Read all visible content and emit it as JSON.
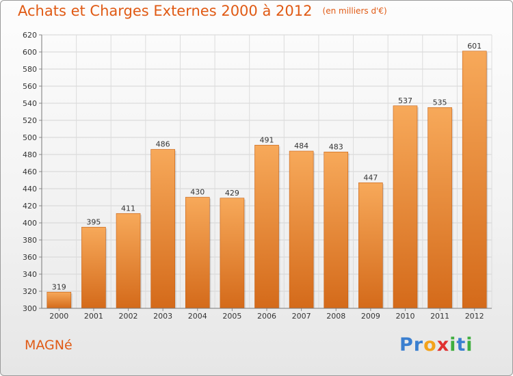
{
  "header": {
    "title": "Achats et Charges Externes 2000 à 2012",
    "unit": "(en milliers d'€)"
  },
  "footer": {
    "commune": "MAGNé",
    "logo_letters": [
      "P",
      "r",
      "o",
      "x",
      "i",
      "t",
      "i"
    ]
  },
  "colors": {
    "title": "#e05a14",
    "bar_light": "#f7a95a",
    "bar_dark": "#d46a1a",
    "logo": [
      "#3a7fd0",
      "#3a7fd0",
      "#f3a21b",
      "#e03030",
      "#3fae3f",
      "#3a7fd0",
      "#3fae3f"
    ]
  },
  "chart_data": {
    "type": "bar",
    "title": "Achats et Charges Externes 2000 à 2012",
    "subtitle": "(en milliers d'€)",
    "categories": [
      "2000",
      "2001",
      "2002",
      "2003",
      "2004",
      "2005",
      "2006",
      "2007",
      "2008",
      "2009",
      "2010",
      "2011",
      "2012"
    ],
    "values": [
      319,
      395,
      411,
      486,
      430,
      429,
      491,
      484,
      483,
      447,
      537,
      535,
      601
    ],
    "ylim": [
      300,
      620
    ],
    "ytick_step": 20,
    "yticks": [
      "300",
      "320",
      "340",
      "360",
      "380",
      "400",
      "420",
      "440",
      "460",
      "480",
      "500",
      "520",
      "540",
      "560",
      "580",
      "600",
      "620"
    ],
    "grid": true,
    "legend": "none"
  }
}
